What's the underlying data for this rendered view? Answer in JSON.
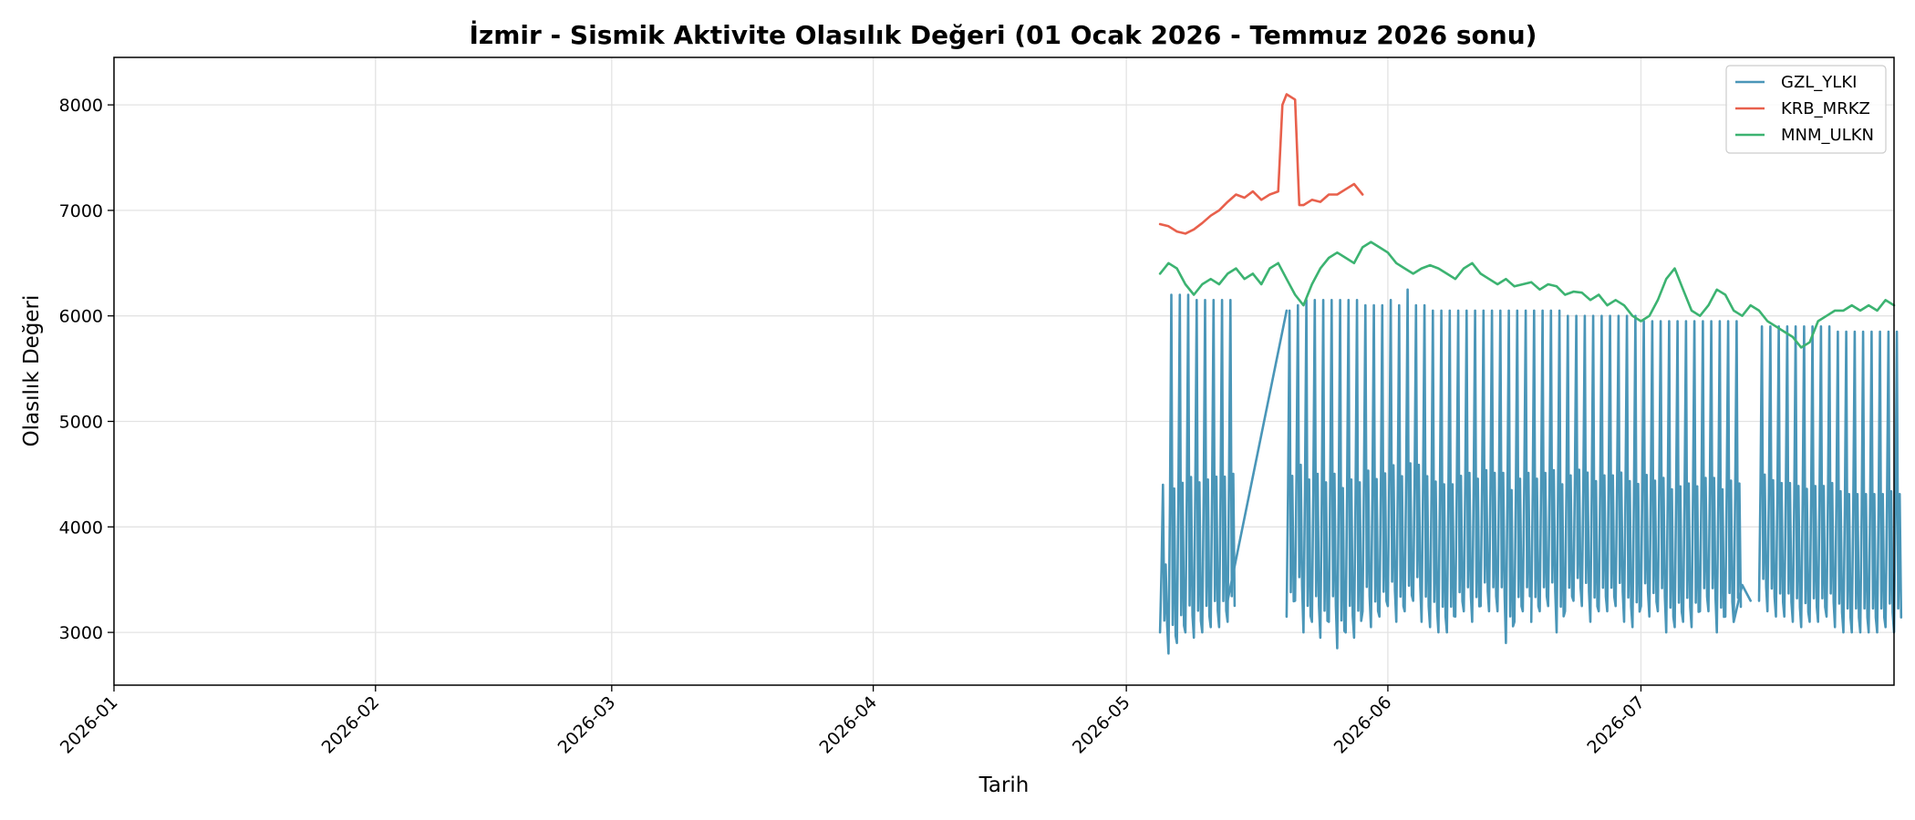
{
  "chart_data": {
    "type": "line",
    "title": "İzmir - Sismik Aktivite Olasılık Değeri (01 Ocak 2026 - Temmuz 2026 sonu)",
    "xlabel": "Tarih",
    "ylabel": "Olasılık Değeri",
    "xlim": [
      "2026-01-01",
      "2026-07-31"
    ],
    "ylim": [
      2500,
      8450
    ],
    "x_ticks": [
      "2026-01",
      "2026-02",
      "2026-03",
      "2026-04",
      "2026-05",
      "2026-06",
      "2026-07"
    ],
    "y_ticks": [
      3000,
      4000,
      5000,
      6000,
      7000,
      8000
    ],
    "grid": true,
    "legend_position": "top-right",
    "series": [
      {
        "name": "GZL_YLKI",
        "color": "#4a96b8",
        "pattern": "daily-oscillation",
        "segments": [
          {
            "start": "2026-05-05",
            "end": "2026-05-13",
            "min": [
              3000,
              2800,
              2900,
              3000,
              2950,
              3000,
              3050,
              3050,
              3100
            ],
            "max": [
              4400,
              6200,
              6200,
              6200,
              6150,
              6150,
              6150,
              6150,
              6150
            ]
          },
          {
            "start": "2026-05-20",
            "end": "2026-06-17",
            "min": [
              3150,
              3300,
              3000,
              3100,
              2950,
              3100,
              2850,
              3000,
              2950,
              3200,
              3050,
              3150,
              3250,
              3100,
              3200,
              3300,
              3100,
              3050,
              3000,
              3000,
              3150,
              3200,
              3100,
              3250,
              3200,
              3200,
              2900,
              3100,
              3200
            ],
            "max": [
              6050,
              6100,
              6150,
              6150,
              6150,
              6150,
              6150,
              6150,
              6150,
              6100,
              6100,
              6100,
              6150,
              6100,
              6250,
              6100,
              6100,
              6050,
              6050,
              6050,
              6050,
              6050,
              6050,
              6050,
              6050,
              6050,
              6050,
              6050,
              6050
            ]
          },
          {
            "start": "2026-06-18",
            "end": "2026-07-12",
            "min": [
              3100,
              3200,
              3250,
              3000,
              3200,
              3300,
              3250,
              3100,
              3200,
              3200,
              3250,
              3100,
              3050,
              3250,
              3150,
              3200,
              3000,
              3050,
              3100,
              3050,
              3200,
              3200,
              3000,
              3150,
              3100
            ],
            "max": [
              6050,
              6050,
              6050,
              6050,
              6000,
              6000,
              6000,
              6000,
              6000,
              6000,
              6000,
              6000,
              6000,
              5950,
              5950,
              5950,
              5950,
              5950,
              5950,
              5950,
              5950,
              5950,
              5950,
              5950,
              5950
            ]
          },
          {
            "start": "2026-07-15",
            "end": "2026-07-31",
            "min": [
              3300,
              3200,
              3150,
              3150,
              3100,
              3050,
              3100,
              3100,
              3150,
              3050,
              3000,
              3000,
              3000,
              3000,
              3000,
              3050,
              3000
            ],
            "max": [
              5900,
              5900,
              5900,
              5900,
              5900,
              5900,
              5900,
              5900,
              5900,
              5850,
              5850,
              5850,
              5850,
              5850,
              5850,
              5850,
              5850
            ]
          }
        ],
        "connectors": [
          {
            "points": [
              [
                "2026-05-13",
                3300
              ],
              [
                "2026-05-20",
                6050
              ]
            ]
          },
          {
            "points": [
              [
                "2026-07-12",
                3100
              ],
              [
                "2026-07-13",
                3450
              ],
              [
                "2026-07-14",
                3300
              ]
            ]
          }
        ]
      },
      {
        "name": "KRB_MRKZ",
        "color": "#e8604c",
        "x": [
          "2026-05-05",
          "2026-05-06",
          "2026-05-07",
          "2026-05-08",
          "2026-05-09",
          "2026-05-10",
          "2026-05-11",
          "2026-05-12",
          "2026-05-13",
          "2026-05-14",
          "2026-05-15",
          "2026-05-16",
          "2026-05-17",
          "2026-05-18",
          "2026-05-19",
          "2026-05-19T12:00",
          "2026-05-20",
          "2026-05-21",
          "2026-05-21T12:00",
          "2026-05-22",
          "2026-05-23",
          "2026-05-24",
          "2026-05-25",
          "2026-05-26",
          "2026-05-27",
          "2026-05-28",
          "2026-05-29"
        ],
        "values": [
          6870,
          6850,
          6800,
          6780,
          6820,
          6880,
          6950,
          7000,
          7080,
          7150,
          7120,
          7180,
          7100,
          7150,
          7180,
          8000,
          8100,
          8050,
          7050,
          7050,
          7100,
          7080,
          7150,
          7150,
          7200,
          7250,
          7150
        ]
      },
      {
        "name": "MNM_ULKN",
        "color": "#3cb371",
        "x": [
          "2026-05-05",
          "2026-05-06",
          "2026-05-07",
          "2026-05-08",
          "2026-05-09",
          "2026-05-10",
          "2026-05-11",
          "2026-05-12",
          "2026-05-13",
          "2026-05-14",
          "2026-05-15",
          "2026-05-16",
          "2026-05-17",
          "2026-05-18",
          "2026-05-19",
          "2026-05-20",
          "2026-05-21",
          "2026-05-22",
          "2026-05-23",
          "2026-05-24",
          "2026-05-25",
          "2026-05-26",
          "2026-05-27",
          "2026-05-28",
          "2026-05-29",
          "2026-05-30",
          "2026-05-31",
          "2026-06-01",
          "2026-06-02",
          "2026-06-03",
          "2026-06-04",
          "2026-06-05",
          "2026-06-06",
          "2026-06-07",
          "2026-06-08",
          "2026-06-09",
          "2026-06-10",
          "2026-06-11",
          "2026-06-12",
          "2026-06-13",
          "2026-06-14",
          "2026-06-15",
          "2026-06-16",
          "2026-06-17",
          "2026-06-18",
          "2026-06-19",
          "2026-06-20",
          "2026-06-21",
          "2026-06-22",
          "2026-06-23",
          "2026-06-24",
          "2026-06-25",
          "2026-06-26",
          "2026-06-27",
          "2026-06-28",
          "2026-06-29",
          "2026-06-30",
          "2026-07-01",
          "2026-07-02",
          "2026-07-03",
          "2026-07-04",
          "2026-07-05",
          "2026-07-06",
          "2026-07-07",
          "2026-07-08",
          "2026-07-09",
          "2026-07-10",
          "2026-07-11",
          "2026-07-12",
          "2026-07-13",
          "2026-07-14",
          "2026-07-15",
          "2026-07-16",
          "2026-07-17",
          "2026-07-18",
          "2026-07-19",
          "2026-07-20",
          "2026-07-21",
          "2026-07-22",
          "2026-07-23",
          "2026-07-24",
          "2026-07-25",
          "2026-07-26",
          "2026-07-27",
          "2026-07-28",
          "2026-07-29",
          "2026-07-30",
          "2026-07-31"
        ],
        "values": [
          6400,
          6500,
          6450,
          6300,
          6200,
          6300,
          6350,
          6300,
          6400,
          6450,
          6350,
          6400,
          6300,
          6450,
          6500,
          6350,
          6200,
          6100,
          6300,
          6450,
          6550,
          6600,
          6550,
          6500,
          6650,
          6700,
          6650,
          6600,
          6500,
          6450,
          6400,
          6450,
          6480,
          6450,
          6400,
          6350,
          6450,
          6500,
          6400,
          6350,
          6300,
          6350,
          6280,
          6300,
          6320,
          6250,
          6300,
          6280,
          6200,
          6230,
          6220,
          6150,
          6200,
          6100,
          6150,
          6100,
          6000,
          5950,
          6000,
          6150,
          6350,
          6450,
          6250,
          6050,
          6000,
          6100,
          6250,
          6200,
          6050,
          6000,
          6100,
          6050,
          5950,
          5900,
          5850,
          5800,
          5700,
          5750,
          5950,
          6000,
          6050,
          6050,
          6100,
          6050,
          6100,
          6050,
          6150,
          6100
        ]
      }
    ]
  }
}
